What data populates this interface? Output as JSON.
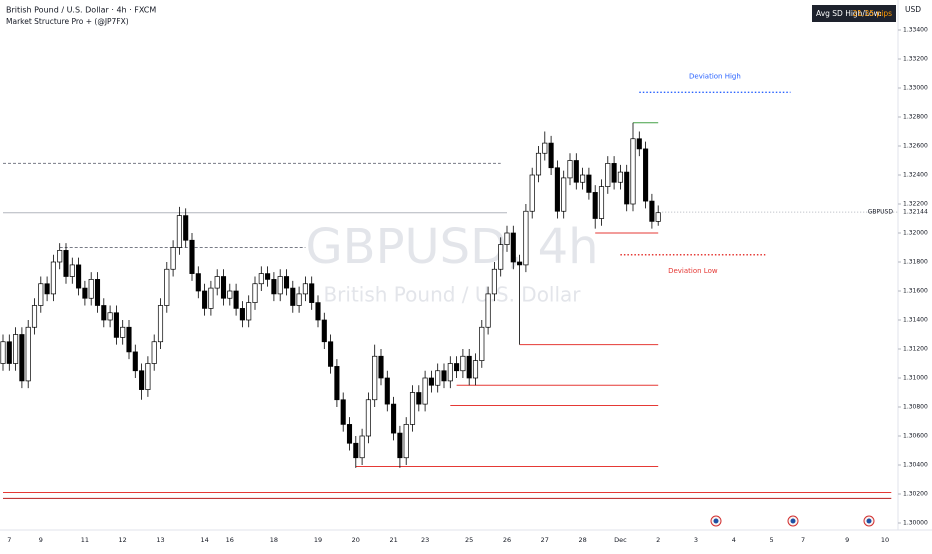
{
  "chart_data": {
    "type": "candlestick",
    "title": "British Pound / U.S. Dollar · 4h · FXCM",
    "subtitle": "Market Structure Pro + (@JP7FX)",
    "watermark": "GBPUSD, 4h",
    "watermark_subtitle": "British Pound / U.S. Dollar",
    "currency": "USD",
    "symbol": "GBPUSD",
    "last_price": 1.32144,
    "info_label": "Avg SD High/Low:",
    "info_value": "21.35 pips",
    "up_color": "#ffffff",
    "down_color": "#000000",
    "categories": [
      null,
      "7",
      null,
      null,
      null,
      null,
      "9",
      null,
      null,
      null,
      null,
      null,
      null,
      "11",
      null,
      null,
      null,
      null,
      null,
      "12",
      null,
      null,
      null,
      null,
      null,
      "13",
      null,
      null,
      null,
      null,
      null,
      null,
      "14",
      null,
      null,
      null,
      "16",
      null,
      null,
      null,
      null,
      null,
      null,
      "18",
      null,
      null,
      null,
      null,
      null,
      null,
      "19",
      null,
      null,
      null,
      null,
      null,
      "20",
      null,
      null,
      null,
      null,
      null,
      "21",
      null,
      null,
      null,
      null,
      "23",
      null,
      null,
      null,
      null,
      null,
      null,
      "25",
      null,
      null,
      null,
      null,
      null,
      "26",
      null,
      null,
      null,
      null,
      null,
      "27",
      null,
      null,
      null,
      null,
      null,
      "28",
      null,
      null,
      null,
      null,
      null,
      "Dec",
      null,
      null,
      null,
      null,
      null,
      "2",
      null,
      null,
      null,
      null,
      null,
      "3",
      null,
      null,
      null,
      null,
      null,
      "4",
      null,
      null,
      null,
      null,
      null,
      "5",
      null,
      null,
      null,
      null,
      "7",
      null,
      null,
      null,
      null,
      null,
      null,
      "9",
      null,
      null,
      null,
      null,
      null,
      "10",
      null
    ],
    "open": [
      1.311,
      1.3125,
      1.311,
      1.313,
      1.3098,
      1.3135,
      1.315,
      1.3165,
      1.3158,
      1.318,
      1.3188,
      1.317,
      1.3178,
      1.3162,
      1.3155,
      1.3168,
      1.315,
      1.314,
      1.3145,
      1.3128,
      1.3135,
      1.3118,
      1.3105,
      1.3092,
      1.311,
      1.3125,
      1.315,
      1.3175,
      1.319,
      1.3212,
      1.3195,
      1.3172,
      1.316,
      1.3148,
      1.3162,
      1.317,
      1.3155,
      1.316,
      1.3148,
      1.314,
      1.3152,
      1.3165,
      1.3172,
      1.3168,
      1.3158,
      1.317,
      1.3162,
      1.315,
      1.3158,
      1.3165,
      1.3152,
      1.314,
      1.3125,
      1.3108,
      1.3085,
      1.3068,
      1.3055,
      1.3045,
      1.306,
      1.3085,
      1.3115,
      1.31,
      1.3082,
      1.3062,
      1.3045,
      1.3068,
      1.309,
      1.3082,
      1.31,
      1.3095,
      1.3105,
      1.3098,
      1.311,
      1.3105,
      1.3115,
      1.31,
      1.3112,
      1.3135,
      1.3158,
      1.3175,
      1.3192,
      1.32,
      1.318,
      1.3178,
      1.3215,
      1.324,
      1.3255,
      1.3262,
      1.3245,
      1.3215,
      1.3238,
      1.325,
      1.3235,
      1.324,
      1.3228,
      1.321,
      1.3232,
      1.3248,
      1.3235,
      1.3242,
      1.322,
      1.3265,
      1.3258,
      1.3222,
      1.3208,
      null,
      null,
      null,
      null,
      null,
      null,
      null,
      null,
      null,
      null,
      null,
      null,
      null,
      null,
      null,
      null,
      null,
      null,
      null,
      null,
      null,
      null,
      null,
      null,
      null,
      null,
      null,
      null,
      null,
      null,
      null,
      null,
      null,
      null,
      null,
      null,
      null
    ],
    "high": [
      1.313,
      1.313,
      1.3135,
      1.3135,
      1.314,
      1.3155,
      1.317,
      1.317,
      1.3185,
      1.3193,
      1.3193,
      1.3183,
      1.3183,
      1.3167,
      1.3173,
      1.3173,
      1.3155,
      1.315,
      1.315,
      1.314,
      1.314,
      1.3123,
      1.311,
      1.3115,
      1.313,
      1.3155,
      1.318,
      1.3195,
      1.3218,
      1.3217,
      1.32,
      1.3177,
      1.3165,
      1.3167,
      1.3175,
      1.3175,
      1.3165,
      1.3165,
      1.3153,
      1.3157,
      1.317,
      1.3177,
      1.3177,
      1.3173,
      1.3175,
      1.3175,
      1.3167,
      1.3163,
      1.317,
      1.317,
      1.3157,
      1.3145,
      1.313,
      1.3113,
      1.309,
      1.3073,
      1.306,
      1.3065,
      1.309,
      1.3123,
      1.312,
      1.3105,
      1.3087,
      1.3067,
      1.3073,
      1.3095,
      1.3095,
      1.3105,
      1.3105,
      1.311,
      1.311,
      1.3115,
      1.3115,
      1.312,
      1.312,
      1.3117,
      1.314,
      1.3163,
      1.318,
      1.3197,
      1.3205,
      1.3205,
      1.3185,
      1.322,
      1.3245,
      1.326,
      1.327,
      1.3267,
      1.325,
      1.3243,
      1.3255,
      1.3255,
      1.3245,
      1.3245,
      1.3233,
      1.3237,
      1.3253,
      1.3253,
      1.3247,
      1.3247,
      1.3276,
      1.327,
      1.3263,
      1.3227,
      1.3219,
      null,
      null,
      null,
      null,
      null,
      null,
      null,
      null,
      null,
      null,
      null,
      null,
      null,
      null,
      null,
      null,
      null,
      null,
      null,
      null,
      null,
      null,
      null,
      null,
      null,
      null,
      null,
      null,
      null,
      null,
      null,
      null,
      null,
      null,
      null,
      null,
      null
    ],
    "low": [
      1.3105,
      1.3105,
      1.3105,
      1.3093,
      1.3093,
      1.313,
      1.3145,
      1.3153,
      1.3153,
      1.3175,
      1.3165,
      1.3165,
      1.3157,
      1.315,
      1.315,
      1.3145,
      1.3135,
      1.3135,
      1.3123,
      1.3123,
      1.3113,
      1.31,
      1.3085,
      1.3087,
      1.3105,
      1.312,
      1.3145,
      1.317,
      1.3185,
      1.319,
      1.3167,
      1.3155,
      1.3143,
      1.3143,
      1.3157,
      1.315,
      1.315,
      1.3143,
      1.3135,
      1.3135,
      1.3147,
      1.316,
      1.3163,
      1.3153,
      1.3153,
      1.3157,
      1.3145,
      1.3145,
      1.3153,
      1.3147,
      1.3135,
      1.312,
      1.3103,
      1.308,
      1.3063,
      1.305,
      1.3038,
      1.304,
      1.3055,
      1.308,
      1.3095,
      1.3077,
      1.3057,
      1.3038,
      1.304,
      1.3063,
      1.3077,
      1.3077,
      1.309,
      1.309,
      1.3093,
      1.3093,
      1.31,
      1.31,
      1.3095,
      1.3095,
      1.3107,
      1.313,
      1.3153,
      1.317,
      1.3187,
      1.3175,
      1.3123,
      1.3173,
      1.321,
      1.3235,
      1.325,
      1.324,
      1.321,
      1.321,
      1.3233,
      1.323,
      1.323,
      1.3223,
      1.3203,
      1.3205,
      1.3227,
      1.323,
      1.323,
      1.3215,
      1.3215,
      1.3253,
      1.3217,
      1.3203,
      1.3205,
      null,
      null,
      null,
      null,
      null,
      null,
      null,
      null,
      null,
      null,
      null,
      null,
      null,
      null,
      null,
      null,
      null,
      null,
      null,
      null,
      null,
      null,
      null,
      null,
      null,
      null,
      null,
      null,
      null,
      null,
      null,
      null,
      null,
      null,
      null,
      null,
      null
    ],
    "close": [
      1.3125,
      1.311,
      1.313,
      1.3098,
      1.3135,
      1.315,
      1.3165,
      1.3158,
      1.318,
      1.3188,
      1.317,
      1.3178,
      1.3162,
      1.3155,
      1.3168,
      1.315,
      1.314,
      1.3145,
      1.3128,
      1.3135,
      1.3118,
      1.3105,
      1.3092,
      1.311,
      1.3125,
      1.315,
      1.3175,
      1.319,
      1.3212,
      1.3195,
      1.3172,
      1.316,
      1.3148,
      1.3162,
      1.317,
      1.3155,
      1.316,
      1.3148,
      1.314,
      1.3152,
      1.3165,
      1.3172,
      1.3168,
      1.3158,
      1.317,
      1.3162,
      1.315,
      1.3158,
      1.3165,
      1.3152,
      1.314,
      1.3125,
      1.3108,
      1.3085,
      1.3068,
      1.3055,
      1.3045,
      1.306,
      1.3085,
      1.3115,
      1.31,
      1.3082,
      1.3062,
      1.3045,
      1.3068,
      1.309,
      1.3082,
      1.31,
      1.3095,
      1.3105,
      1.3098,
      1.311,
      1.3105,
      1.3115,
      1.31,
      1.3112,
      1.3135,
      1.3158,
      1.3175,
      1.3192,
      1.32,
      1.318,
      1.3178,
      1.3215,
      1.324,
      1.3255,
      1.3262,
      1.3245,
      1.3215,
      1.3238,
      1.325,
      1.3235,
      1.324,
      1.3228,
      1.321,
      1.3232,
      1.3248,
      1.3235,
      1.3242,
      1.322,
      1.3265,
      1.3258,
      1.3222,
      1.3208,
      1.3214,
      null,
      null,
      null,
      null,
      null,
      null,
      null,
      null,
      null,
      null,
      null,
      null,
      null,
      null,
      null,
      null,
      null,
      null,
      null,
      null,
      null,
      null,
      null,
      null,
      null,
      null,
      null,
      null,
      null,
      null,
      null,
      null,
      null,
      null,
      null,
      null,
      null
    ],
    "levels": [
      {
        "value": 1.3248,
        "start": 0,
        "end": 79,
        "color": "#787b86",
        "style": "dashed"
      },
      {
        "value": 1.3214,
        "start": 0,
        "end": 80,
        "color": "#b2b5be",
        "style": "solid"
      },
      {
        "value": 1.319,
        "start": 9,
        "end": 48,
        "color": "#787b86",
        "style": "dashed"
      },
      {
        "value": 1.3123,
        "start": 82,
        "end": 104,
        "color": "#e53935",
        "style": "solid"
      },
      {
        "value": 1.3095,
        "start": 72,
        "end": 104,
        "color": "#e53935",
        "style": "solid"
      },
      {
        "value": 1.3081,
        "start": 71,
        "end": 104,
        "color": "#e53935",
        "style": "solid"
      },
      {
        "value": 1.3039,
        "start": 56,
        "end": 104,
        "color": "#e53935",
        "style": "solid"
      },
      {
        "value": 1.32,
        "start": 94,
        "end": 104,
        "color": "#e53935",
        "style": "solid"
      },
      {
        "value": 1.3276,
        "start": 100,
        "end": 104,
        "color": "#43a047",
        "style": "solid"
      },
      {
        "value": 1.3021,
        "start": 0,
        "end": 141,
        "color": "#e53935",
        "style": "solid"
      },
      {
        "value": 1.3017,
        "start": 0,
        "end": 141,
        "color": "#b71c1c",
        "style": "solid"
      },
      {
        "value": 1.3297,
        "start": 101,
        "end": 125,
        "color": "#2962ff",
        "style": "dotted",
        "label": "Deviation High"
      },
      {
        "value": 1.3185,
        "start": 98,
        "end": 121,
        "color": "#e53935",
        "style": "dotted",
        "label": "Deviation Low"
      }
    ],
    "ylim": [
      1.3,
      1.334
    ],
    "yticks": [
      {
        "value": 1.3,
        "label": "1.30000"
      },
      {
        "value": 1.302,
        "label": "1.30200"
      },
      {
        "value": 1.304,
        "label": "1.30400"
      },
      {
        "value": 1.306,
        "label": "1.30600"
      },
      {
        "value": 1.308,
        "label": "1.30800"
      },
      {
        "value": 1.31,
        "label": "1.31000"
      },
      {
        "value": 1.312,
        "label": "1.31200"
      },
      {
        "value": 1.314,
        "label": "1.31400"
      },
      {
        "value": 1.316,
        "label": "1.31600"
      },
      {
        "value": 1.318,
        "label": "1.31800"
      },
      {
        "value": 1.32,
        "label": "1.32000"
      },
      {
        "value": 1.322,
        "label": "1.32200"
      },
      {
        "value": 1.324,
        "label": "1.32400"
      },
      {
        "value": 1.326,
        "label": "1.32600"
      },
      {
        "value": 1.328,
        "label": "1.32800"
      },
      {
        "value": 1.33,
        "label": "1.33000"
      },
      {
        "value": 1.332,
        "label": "1.33200"
      },
      {
        "value": 1.334,
        "label": "1.33400"
      }
    ]
  }
}
